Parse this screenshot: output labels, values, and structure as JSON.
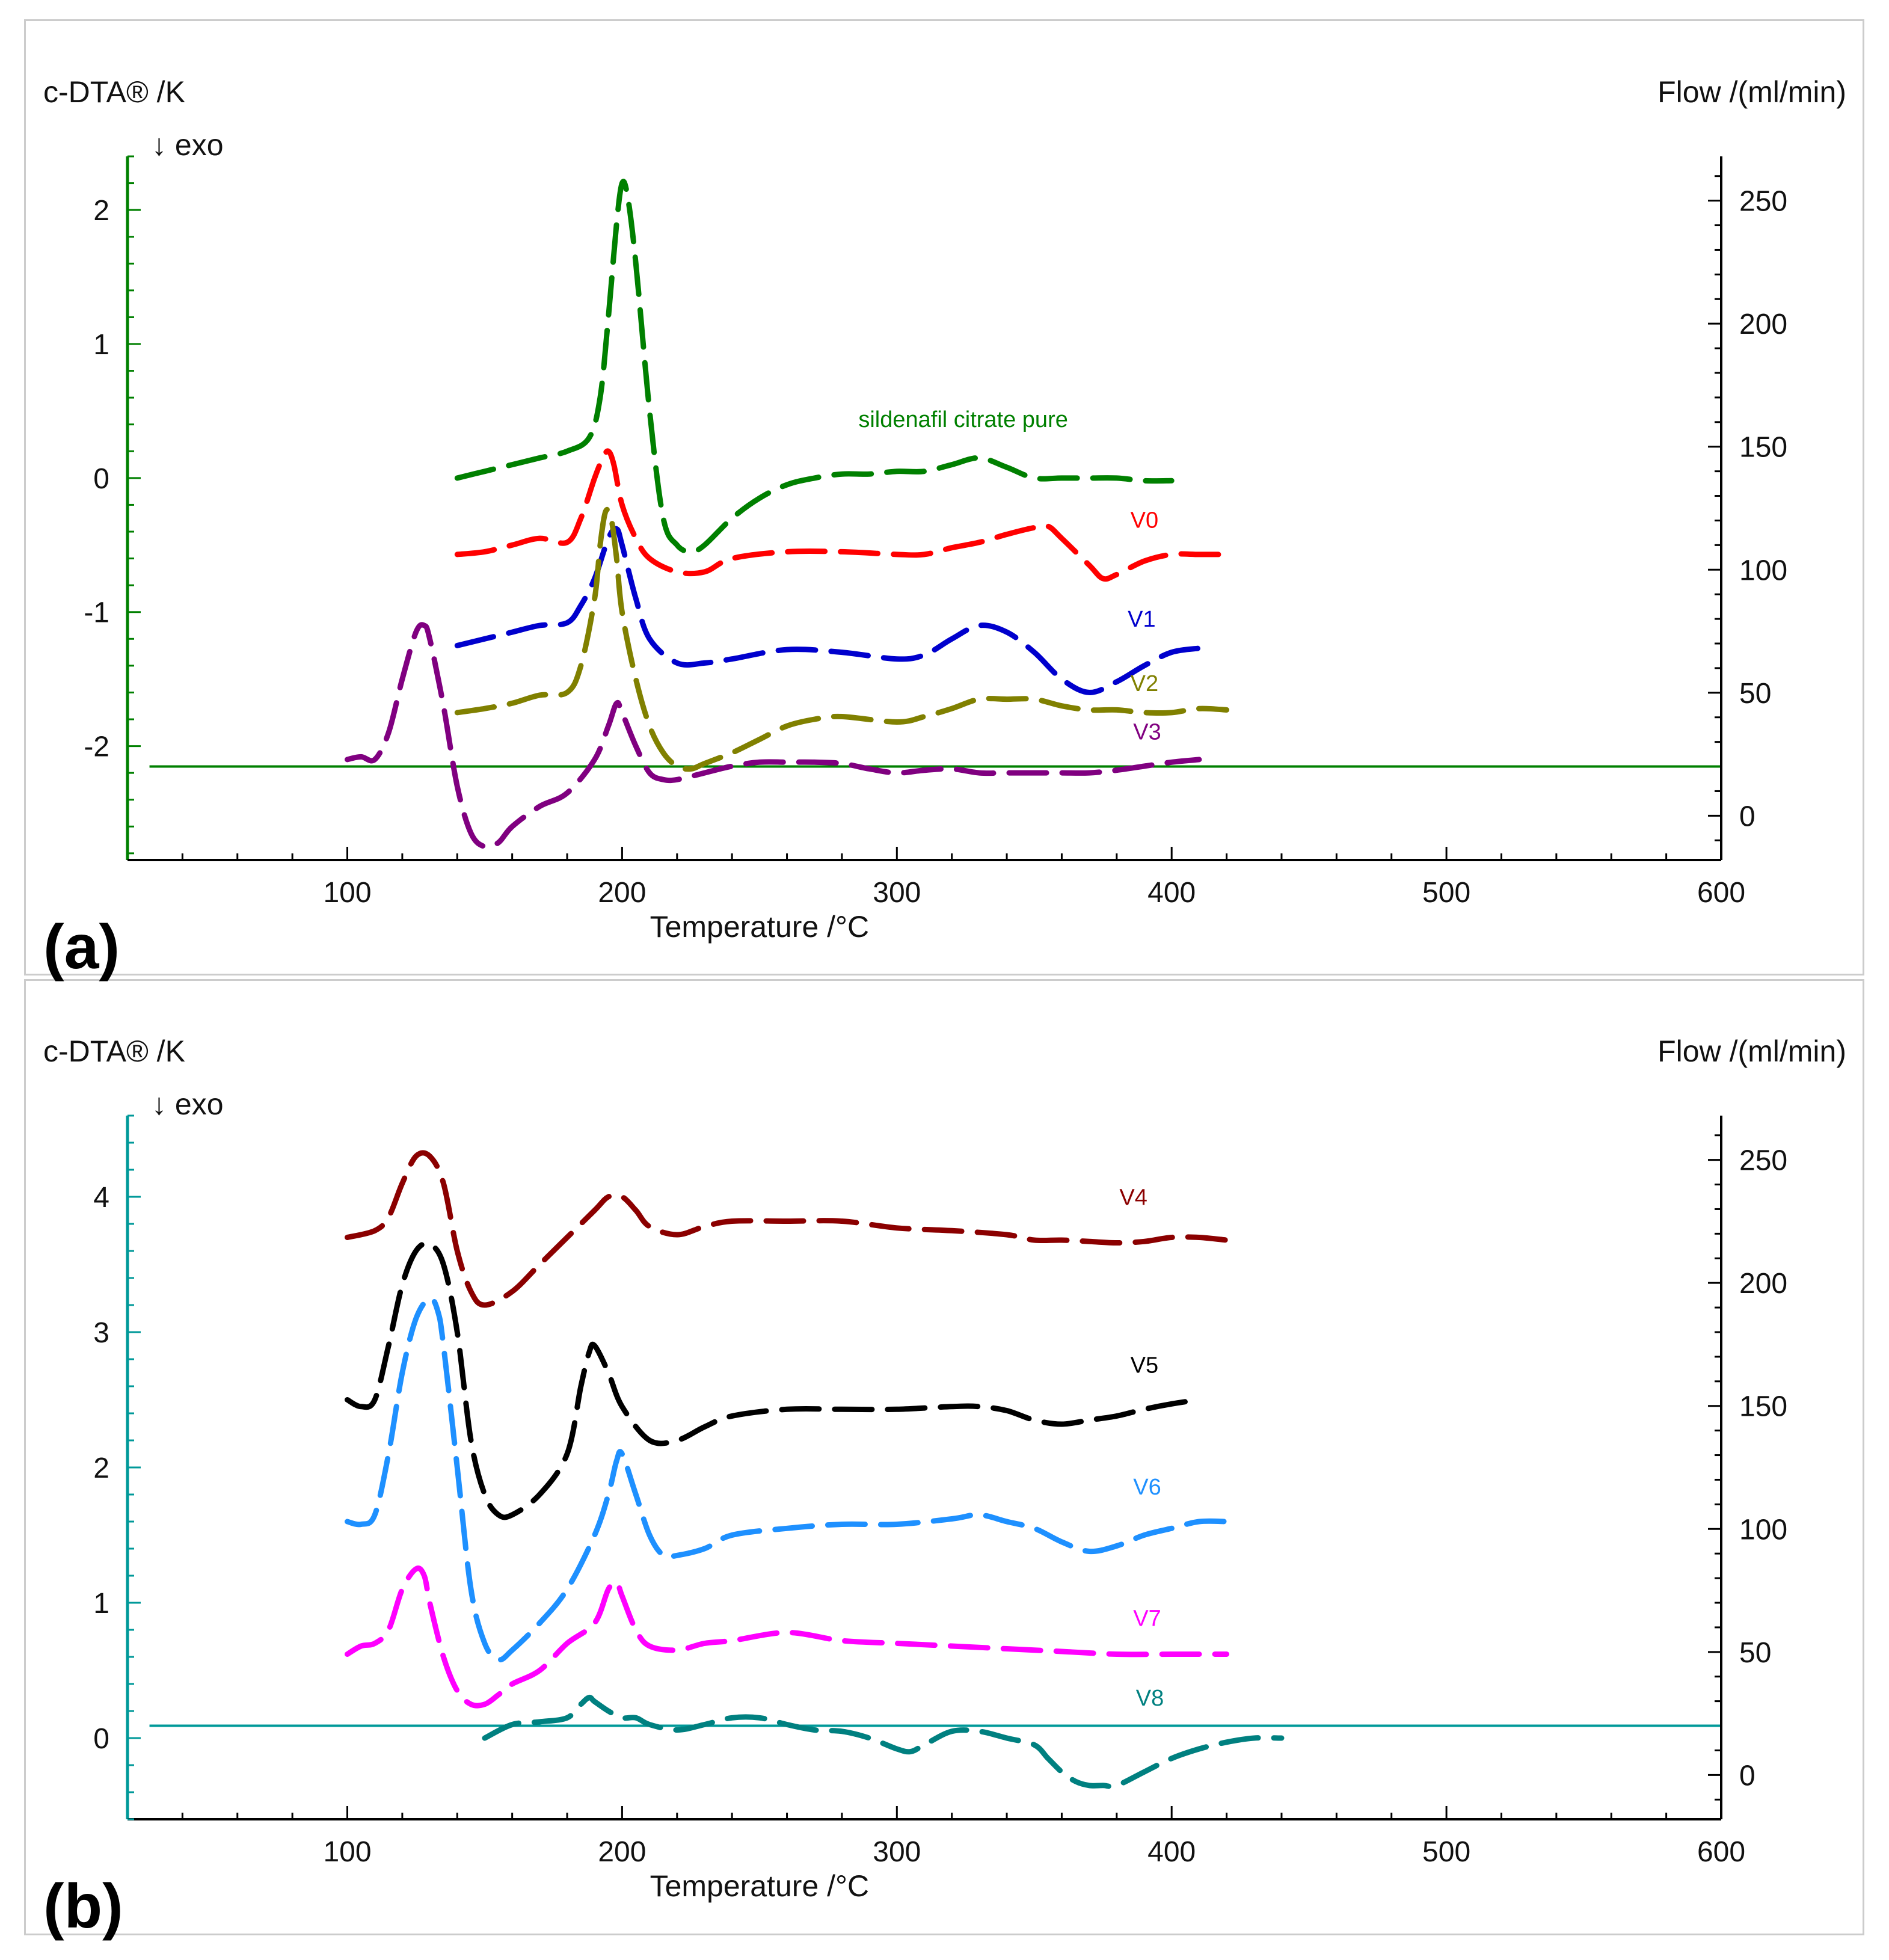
{
  "chart_data": [
    {
      "panel": "(a)",
      "type": "line",
      "xlabel": "Temperature /°C",
      "ylabel_left": "c-DTA® /K",
      "ylabel_right": "Flow /(ml/min)",
      "exo_note": "↓ exo",
      "xlim": [
        20,
        600
      ],
      "ylim_left": [
        -2.85,
        2.4
      ],
      "ylim_right": [
        -18,
        268
      ],
      "x_ticks": [
        100,
        200,
        300,
        400,
        500,
        600
      ],
      "y_ticks_left": [
        -2,
        -1,
        0,
        1,
        2
      ],
      "y_ticks_right": [
        0,
        50,
        100,
        150,
        200,
        250
      ],
      "axis_color": "#008000",
      "flow_line": {
        "y_right": 20,
        "x_range": [
          28,
          600
        ],
        "color": "#008000"
      },
      "series": [
        {
          "name": "sildenafil citrate pure",
          "color": "#008000",
          "label_at": [
            286,
            0.38
          ],
          "x": [
            140,
            150,
            160,
            170,
            180,
            188,
            192,
            195,
            198,
            200,
            202,
            205,
            210,
            215,
            220,
            225,
            230,
            240,
            250,
            260,
            270,
            280,
            290,
            300,
            310,
            320,
            330,
            340,
            350,
            360,
            370,
            380,
            390,
            400
          ],
          "y": [
            0.0,
            0.05,
            0.1,
            0.15,
            0.2,
            0.3,
            0.6,
            1.2,
            1.9,
            2.2,
            2.1,
            1.6,
            0.5,
            -0.3,
            -0.5,
            -0.55,
            -0.5,
            -0.3,
            -0.15,
            -0.05,
            0.0,
            0.03,
            0.03,
            0.05,
            0.05,
            0.1,
            0.15,
            0.08,
            0.0,
            0.0,
            0.0,
            0.0,
            -0.02,
            -0.02
          ]
        },
        {
          "name": "V0",
          "color": "#ff0000",
          "label_at": [
            385,
            -0.37
          ],
          "x": [
            140,
            150,
            160,
            170,
            180,
            185,
            190,
            193,
            195,
            197,
            200,
            205,
            210,
            220,
            230,
            240,
            260,
            280,
            300,
            310,
            320,
            330,
            340,
            350,
            355,
            360,
            370,
            375,
            380,
            390,
            400,
            410,
            420
          ],
          "y": [
            -0.57,
            -0.55,
            -0.5,
            -0.45,
            -0.48,
            -0.3,
            0.0,
            0.15,
            0.2,
            0.1,
            -0.2,
            -0.45,
            -0.6,
            -0.7,
            -0.7,
            -0.6,
            -0.55,
            -0.55,
            -0.57,
            -0.57,
            -0.52,
            -0.48,
            -0.42,
            -0.37,
            -0.36,
            -0.45,
            -0.65,
            -0.75,
            -0.72,
            -0.62,
            -0.57,
            -0.57,
            -0.57
          ]
        },
        {
          "name": "V1",
          "color": "#0000cd",
          "label_at": [
            384,
            -1.11
          ],
          "x": [
            140,
            150,
            160,
            170,
            180,
            185,
            190,
            195,
            198,
            200,
            205,
            210,
            220,
            230,
            240,
            260,
            280,
            300,
            310,
            320,
            330,
            340,
            350,
            360,
            370,
            380,
            390,
            400,
            410
          ],
          "y": [
            -1.25,
            -1.2,
            -1.15,
            -1.1,
            -1.08,
            -0.95,
            -0.75,
            -0.45,
            -0.38,
            -0.5,
            -0.9,
            -1.2,
            -1.38,
            -1.38,
            -1.35,
            -1.28,
            -1.3,
            -1.35,
            -1.32,
            -1.2,
            -1.1,
            -1.15,
            -1.3,
            -1.5,
            -1.6,
            -1.52,
            -1.4,
            -1.3,
            -1.27
          ]
        },
        {
          "name": "V2",
          "color": "#808000",
          "label_at": [
            385,
            -1.59
          ],
          "x": [
            140,
            150,
            160,
            170,
            180,
            185,
            190,
            192,
            194,
            196,
            198,
            200,
            205,
            210,
            215,
            220,
            225,
            230,
            240,
            250,
            260,
            270,
            280,
            300,
            310,
            320,
            330,
            340,
            350,
            360,
            370,
            380,
            390,
            400,
            410,
            420
          ],
          "y": [
            -1.75,
            -1.72,
            -1.68,
            -1.62,
            -1.6,
            -1.4,
            -0.9,
            -0.5,
            -0.25,
            -0.3,
            -0.6,
            -1.0,
            -1.5,
            -1.85,
            -2.05,
            -2.15,
            -2.17,
            -2.13,
            -2.05,
            -1.95,
            -1.85,
            -1.8,
            -1.78,
            -1.82,
            -1.78,
            -1.72,
            -1.65,
            -1.65,
            -1.65,
            -1.7,
            -1.73,
            -1.73,
            -1.75,
            -1.75,
            -1.72,
            -1.73
          ]
        },
        {
          "name": "V3",
          "color": "#800080",
          "label_at": [
            386,
            -1.95
          ],
          "x": [
            100,
            105,
            110,
            115,
            120,
            125,
            128,
            130,
            135,
            140,
            145,
            150,
            155,
            160,
            170,
            180,
            190,
            195,
            198,
            200,
            205,
            210,
            215,
            220,
            230,
            240,
            250,
            260,
            270,
            280,
            290,
            300,
            310,
            320,
            330,
            340,
            350,
            360,
            370,
            380,
            390,
            400,
            410
          ],
          "y": [
            -2.1,
            -2.08,
            -2.1,
            -1.9,
            -1.5,
            -1.15,
            -1.1,
            -1.2,
            -1.7,
            -2.3,
            -2.65,
            -2.75,
            -2.72,
            -2.6,
            -2.45,
            -2.35,
            -2.1,
            -1.85,
            -1.68,
            -1.75,
            -2.0,
            -2.2,
            -2.25,
            -2.25,
            -2.2,
            -2.15,
            -2.12,
            -2.12,
            -2.12,
            -2.13,
            -2.17,
            -2.2,
            -2.18,
            -2.17,
            -2.2,
            -2.2,
            -2.2,
            -2.2,
            -2.2,
            -2.18,
            -2.15,
            -2.12,
            -2.1
          ]
        }
      ]
    },
    {
      "panel": "(b)",
      "type": "line",
      "xlabel": "Temperature /°C",
      "ylabel_left": "c-DTA® /K",
      "ylabel_right": "Flow /(ml/min)",
      "exo_note": "↓ exo",
      "xlim": [
        20,
        600
      ],
      "ylim_left": [
        -0.6,
        4.6
      ],
      "ylim_right": [
        -18,
        268
      ],
      "x_ticks": [
        100,
        200,
        300,
        400,
        500,
        600
      ],
      "y_ticks_left": [
        0,
        1,
        2,
        3,
        4
      ],
      "y_ticks_right": [
        0,
        50,
        100,
        150,
        200,
        250
      ],
      "axis_color": "#009999",
      "flow_line": {
        "y_right": 20,
        "x_range": [
          28,
          600
        ],
        "color": "#009999"
      },
      "series": [
        {
          "name": "V4",
          "color": "#8b0000",
          "label_at": [
            381,
            3.94
          ],
          "x": [
            100,
            110,
            115,
            120,
            125,
            130,
            135,
            140,
            145,
            150,
            160,
            170,
            180,
            190,
            195,
            200,
            205,
            210,
            220,
            230,
            240,
            260,
            280,
            300,
            320,
            340,
            350,
            360,
            370,
            380,
            390,
            400,
            410,
            420
          ],
          "y": [
            3.7,
            3.75,
            3.85,
            4.1,
            4.3,
            4.3,
            4.1,
            3.6,
            3.3,
            3.2,
            3.3,
            3.5,
            3.7,
            3.9,
            4.0,
            4.0,
            3.9,
            3.78,
            3.72,
            3.78,
            3.82,
            3.82,
            3.82,
            3.77,
            3.75,
            3.72,
            3.68,
            3.68,
            3.67,
            3.66,
            3.67,
            3.7,
            3.7,
            3.68
          ]
        },
        {
          "name": "V5",
          "color": "#000000",
          "label_at": [
            385,
            2.7
          ],
          "x": [
            100,
            105,
            110,
            115,
            120,
            125,
            130,
            135,
            140,
            145,
            150,
            155,
            160,
            170,
            180,
            185,
            188,
            190,
            195,
            200,
            210,
            220,
            230,
            240,
            260,
            280,
            300,
            320,
            330,
            340,
            350,
            360,
            370,
            380,
            390,
            400,
            410
          ],
          "y": [
            2.5,
            2.45,
            2.5,
            2.9,
            3.35,
            3.6,
            3.65,
            3.5,
            3.0,
            2.2,
            1.8,
            1.65,
            1.65,
            1.8,
            2.1,
            2.6,
            2.85,
            2.9,
            2.7,
            2.45,
            2.2,
            2.2,
            2.3,
            2.38,
            2.43,
            2.43,
            2.43,
            2.45,
            2.45,
            2.42,
            2.35,
            2.32,
            2.35,
            2.38,
            2.43,
            2.47,
            2.5
          ]
        },
        {
          "name": "V6",
          "color": "#1e90ff",
          "label_at": [
            386,
            1.8
          ],
          "x": [
            100,
            105,
            110,
            115,
            120,
            125,
            130,
            133,
            135,
            140,
            145,
            150,
            155,
            160,
            170,
            180,
            190,
            195,
            198,
            200,
            205,
            210,
            215,
            220,
            230,
            240,
            260,
            280,
            300,
            320,
            330,
            340,
            350,
            360,
            370,
            380,
            390,
            400,
            410,
            420
          ],
          "y": [
            1.6,
            1.58,
            1.65,
            2.1,
            2.7,
            3.1,
            3.25,
            3.15,
            2.9,
            2.0,
            1.1,
            0.7,
            0.58,
            0.65,
            0.85,
            1.1,
            1.5,
            1.8,
            2.05,
            2.1,
            1.8,
            1.5,
            1.35,
            1.35,
            1.4,
            1.5,
            1.55,
            1.58,
            1.58,
            1.62,
            1.65,
            1.6,
            1.55,
            1.45,
            1.38,
            1.42,
            1.5,
            1.55,
            1.6,
            1.6
          ]
        },
        {
          "name": "V7",
          "color": "#ff00ff",
          "label_at": [
            386,
            0.83
          ],
          "x": [
            100,
            105,
            110,
            115,
            120,
            125,
            128,
            130,
            135,
            140,
            145,
            150,
            155,
            160,
            170,
            180,
            190,
            195,
            198,
            200,
            205,
            210,
            220,
            230,
            240,
            260,
            280,
            300,
            320,
            340,
            360,
            380,
            400,
            410,
            420
          ],
          "y": [
            0.62,
            0.68,
            0.7,
            0.8,
            1.1,
            1.25,
            1.2,
            1.0,
            0.6,
            0.35,
            0.25,
            0.25,
            0.32,
            0.4,
            0.5,
            0.7,
            0.85,
            1.1,
            1.15,
            1.05,
            0.8,
            0.68,
            0.65,
            0.7,
            0.72,
            0.78,
            0.72,
            0.7,
            0.68,
            0.66,
            0.64,
            0.62,
            0.62,
            0.62,
            0.62
          ]
        },
        {
          "name": "V8",
          "color": "#008080",
          "label_at": [
            387,
            0.24
          ],
          "x": [
            150,
            160,
            170,
            180,
            185,
            188,
            190,
            195,
            200,
            205,
            210,
            220,
            230,
            240,
            250,
            260,
            270,
            280,
            290,
            300,
            305,
            310,
            320,
            330,
            340,
            350,
            355,
            360,
            365,
            370,
            375,
            380,
            390,
            400,
            410,
            420,
            430,
            440
          ],
          "y": [
            0.0,
            0.1,
            0.12,
            0.15,
            0.25,
            0.3,
            0.27,
            0.2,
            0.15,
            0.15,
            0.1,
            0.06,
            0.1,
            0.15,
            0.15,
            0.1,
            0.06,
            0.05,
            0.0,
            -0.08,
            -0.1,
            -0.05,
            0.05,
            0.05,
            0.0,
            -0.05,
            -0.15,
            -0.25,
            -0.32,
            -0.35,
            -0.35,
            -0.35,
            -0.25,
            -0.15,
            -0.08,
            -0.03,
            0.0,
            0.0
          ]
        }
      ]
    }
  ]
}
